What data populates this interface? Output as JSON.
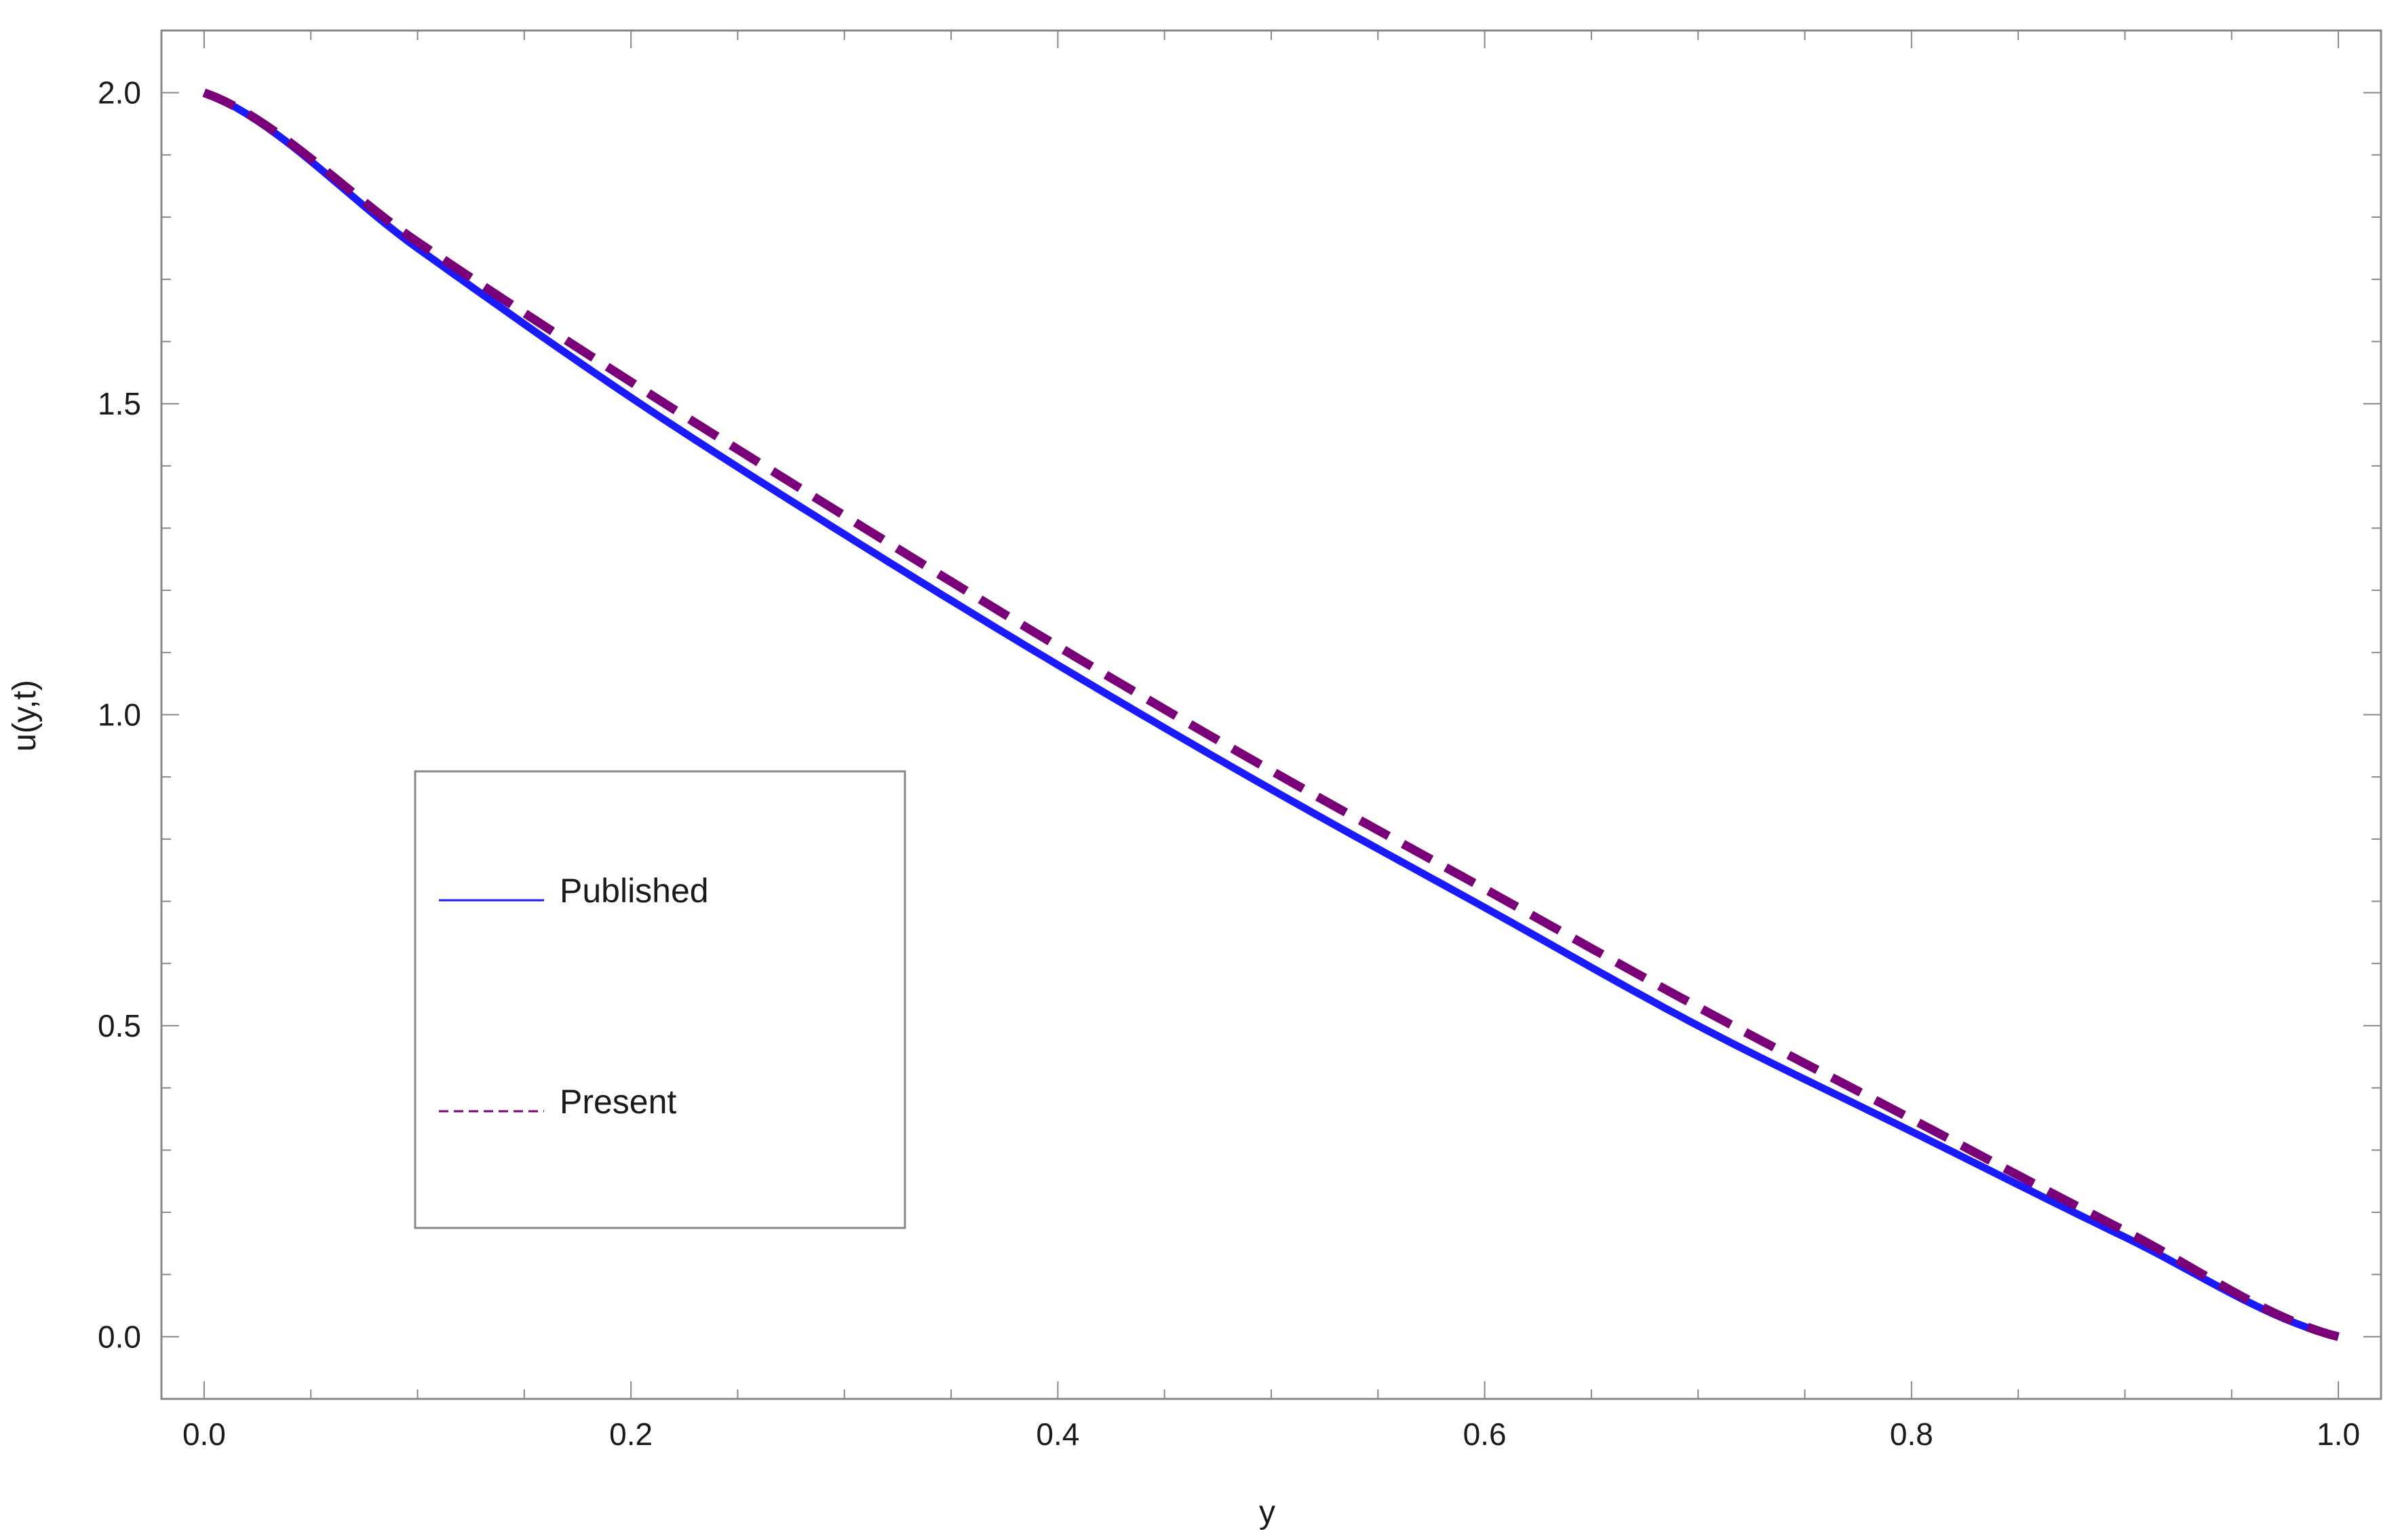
{
  "chart_data": {
    "type": "line",
    "xlabel": "y",
    "ylabel": "u(y,t)",
    "xlim": [
      -0.02,
      1.02
    ],
    "ylim": [
      -0.1,
      2.1
    ],
    "x_ticks": [
      "0.0",
      "0.2",
      "0.4",
      "0.6",
      "0.8",
      "1.0"
    ],
    "y_ticks": [
      "0.0",
      "0.5",
      "1.0",
      "1.5",
      "2.0"
    ],
    "grid": false,
    "frame": "all sides",
    "legend_position": "lower-left inside plot",
    "x": [
      0.0,
      0.1,
      0.2,
      0.3,
      0.4,
      0.5,
      0.6,
      0.7,
      0.8,
      0.9,
      1.0
    ],
    "series": [
      {
        "name": "Published",
        "style": "solid",
        "color": "#1a1aff",
        "values": [
          2.0,
          1.75,
          1.51,
          1.29,
          1.08,
          0.88,
          0.69,
          0.5,
          0.33,
          0.16,
          0.0
        ]
      },
      {
        "name": "Present",
        "style": "dashed",
        "color": "#7a007a",
        "values": [
          2.0,
          1.76,
          1.535,
          1.32,
          1.11,
          0.91,
          0.72,
          0.53,
          0.35,
          0.17,
          0.0
        ]
      }
    ]
  }
}
